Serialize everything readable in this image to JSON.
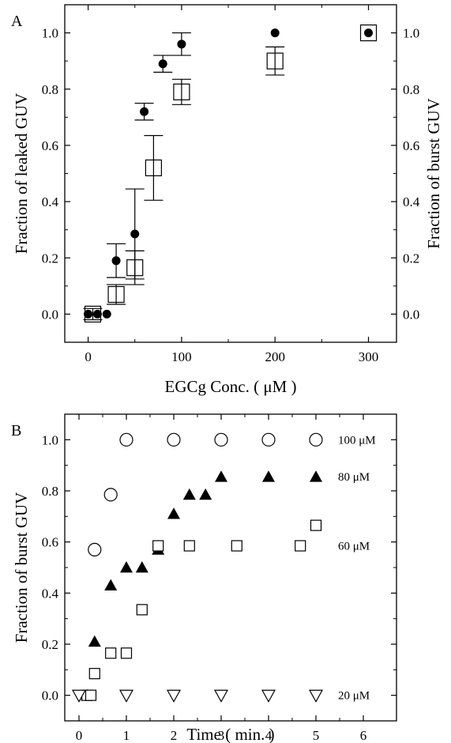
{
  "chart_data": [
    {
      "panel": "A",
      "type": "scatter",
      "xlabel": "EGCg Conc. ( μM )",
      "ylabel": "Fraction of leaked GUV",
      "y2label": "Fraction of burst GUV",
      "xlim": [
        -25,
        330
      ],
      "ylim": [
        -0.1,
        1.1
      ],
      "xticks": [
        0,
        100,
        200,
        300
      ],
      "yticks": [
        0.0,
        0.2,
        0.4,
        0.6,
        0.8,
        1.0
      ],
      "y2ticks": [
        0.0,
        0.2,
        0.4,
        0.6,
        0.8,
        1.0
      ],
      "grid": false,
      "series": [
        {
          "marker": "filled-circle",
          "axis": "left",
          "points": [
            {
              "x": 0,
              "y": 0.0
            },
            {
              "x": 10,
              "y": 0.0
            },
            {
              "x": 20,
              "y": 0.0
            },
            {
              "x": 30,
              "y": 0.19,
              "err": 0.06
            },
            {
              "x": 50,
              "y": 0.285,
              "err": 0.16
            },
            {
              "x": 60,
              "y": 0.72,
              "err": 0.03
            },
            {
              "x": 80,
              "y": 0.89,
              "err": 0.03
            },
            {
              "x": 100,
              "y": 0.96,
              "err": 0.04
            },
            {
              "x": 200,
              "y": 1.0
            },
            {
              "x": 300,
              "y": 1.0
            }
          ]
        },
        {
          "marker": "open-square",
          "axis": "right",
          "points": [
            {
              "x": 5,
              "y": 0.0,
              "err": 0.02
            },
            {
              "x": 30,
              "y": 0.07,
              "err": 0.035
            },
            {
              "x": 50,
              "y": 0.165,
              "err": 0.06
            },
            {
              "x": 70,
              "y": 0.52,
              "err": 0.115
            },
            {
              "x": 100,
              "y": 0.79,
              "err": 0.045
            },
            {
              "x": 200,
              "y": 0.9,
              "err": 0.05
            },
            {
              "x": 300,
              "y": 1.0
            }
          ]
        }
      ]
    },
    {
      "panel": "B",
      "type": "scatter",
      "xlabel": "Time ( min. )",
      "ylabel": "Fraction of burst GUV",
      "xlim": [
        -0.3,
        6.7
      ],
      "ylim": [
        -0.1,
        1.1
      ],
      "xticks": [
        0,
        1,
        2,
        3,
        4,
        5,
        6
      ],
      "yticks": [
        0.0,
        0.2,
        0.4,
        0.6,
        0.8,
        1.0
      ],
      "grid": false,
      "series": [
        {
          "name": "100 μM",
          "marker": "open-circle",
          "points": [
            {
              "x": 0.33,
              "y": 0.57
            },
            {
              "x": 0.67,
              "y": 0.785
            },
            {
              "x": 1.0,
              "y": 1.0
            },
            {
              "x": 2.0,
              "y": 1.0
            },
            {
              "x": 3.0,
              "y": 1.0
            },
            {
              "x": 4.0,
              "y": 1.0
            },
            {
              "x": 5.0,
              "y": 1.0
            }
          ]
        },
        {
          "name": "80 μM",
          "marker": "filled-triangle",
          "points": [
            {
              "x": 0.17,
              "y": 0.0
            },
            {
              "x": 0.33,
              "y": 0.21
            },
            {
              "x": 0.67,
              "y": 0.43
            },
            {
              "x": 1.0,
              "y": 0.5
            },
            {
              "x": 1.33,
              "y": 0.5
            },
            {
              "x": 1.67,
              "y": 0.57
            },
            {
              "x": 2.0,
              "y": 0.71
            },
            {
              "x": 2.33,
              "y": 0.785
            },
            {
              "x": 2.67,
              "y": 0.785
            },
            {
              "x": 3.0,
              "y": 0.855
            },
            {
              "x": 4.0,
              "y": 0.855
            },
            {
              "x": 5.0,
              "y": 0.855
            }
          ]
        },
        {
          "name": "60 μM",
          "marker": "open-square",
          "points": [
            {
              "x": 0.17,
              "y": 0.0
            },
            {
              "x": 0.25,
              "y": 0.0
            },
            {
              "x": 0.33,
              "y": 0.085
            },
            {
              "x": 0.67,
              "y": 0.165
            },
            {
              "x": 1.0,
              "y": 0.165
            },
            {
              "x": 1.33,
              "y": 0.335
            },
            {
              "x": 1.67,
              "y": 0.585
            },
            {
              "x": 2.33,
              "y": 0.585
            },
            {
              "x": 3.33,
              "y": 0.585
            },
            {
              "x": 4.67,
              "y": 0.585
            },
            {
              "x": 5.0,
              "y": 0.665
            }
          ]
        },
        {
          "name": "20 μM",
          "marker": "open-triangle-down",
          "points": [
            {
              "x": 0.0,
              "y": 0.0
            },
            {
              "x": 1.0,
              "y": 0.0
            },
            {
              "x": 2.0,
              "y": 0.0
            },
            {
              "x": 3.0,
              "y": 0.0
            },
            {
              "x": 4.0,
              "y": 0.0
            },
            {
              "x": 5.0,
              "y": 0.0
            }
          ]
        }
      ]
    }
  ]
}
